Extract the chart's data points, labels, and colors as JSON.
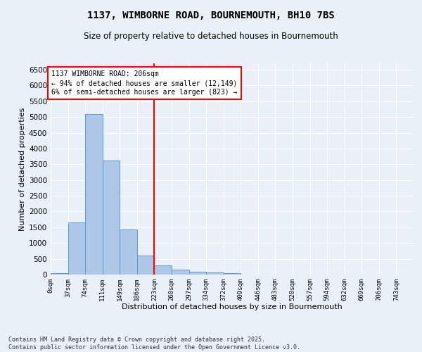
{
  "title_line1": "1137, WIMBORNE ROAD, BOURNEMOUTH, BH10 7BS",
  "title_line2": "Size of property relative to detached houses in Bournemouth",
  "xlabel": "Distribution of detached houses by size in Bournemouth",
  "ylabel": "Number of detached properties",
  "footer_line1": "Contains HM Land Registry data © Crown copyright and database right 2025.",
  "footer_line2": "Contains public sector information licensed under the Open Government Licence v3.0.",
  "bin_labels": [
    "0sqm",
    "37sqm",
    "74sqm",
    "111sqm",
    "149sqm",
    "186sqm",
    "223sqm",
    "260sqm",
    "297sqm",
    "334sqm",
    "372sqm",
    "409sqm",
    "446sqm",
    "483sqm",
    "520sqm",
    "557sqm",
    "594sqm",
    "632sqm",
    "669sqm",
    "706sqm",
    "743sqm"
  ],
  "bar_values": [
    50,
    1650,
    5100,
    3620,
    1420,
    610,
    300,
    150,
    100,
    75,
    35,
    5,
    0,
    0,
    0,
    0,
    0,
    0,
    0,
    0,
    0
  ],
  "bar_color": "#aec6e8",
  "bar_edgecolor": "#5b9bd5",
  "vline_color": "red",
  "vline_x_index": 5,
  "annotation_text": "1137 WIMBORNE ROAD: 206sqm\n← 94% of detached houses are smaller (12,149)\n6% of semi-detached houses are larger (823) →",
  "ylim": [
    0,
    6700
  ],
  "yticks": [
    0,
    500,
    1000,
    1500,
    2000,
    2500,
    3000,
    3500,
    4000,
    4500,
    5000,
    5500,
    6000,
    6500
  ],
  "background_color": "#eaf0f8",
  "grid_color": "#ffffff",
  "bin_width": 37,
  "n_bins": 21
}
